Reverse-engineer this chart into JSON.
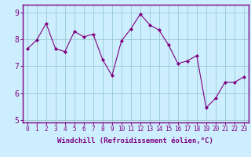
{
  "x": [
    0,
    1,
    2,
    3,
    4,
    5,
    6,
    7,
    8,
    9,
    10,
    11,
    12,
    13,
    14,
    15,
    16,
    17,
    18,
    19,
    20,
    21,
    22,
    23
  ],
  "y": [
    7.65,
    7.98,
    8.6,
    7.65,
    7.55,
    8.3,
    8.1,
    8.2,
    7.25,
    6.65,
    7.95,
    8.4,
    8.95,
    8.55,
    8.35,
    7.8,
    7.1,
    7.2,
    7.4,
    5.45,
    5.8,
    6.4,
    6.4,
    6.6
  ],
  "line_color": "#800080",
  "marker": "D",
  "marker_size": 2,
  "bg_color": "#cceeff",
  "grid_color": "#99cccc",
  "xlabel": "Windchill (Refroidissement éolien,°C)",
  "xlim": [
    -0.5,
    23.5
  ],
  "ylim": [
    4.9,
    9.3
  ],
  "yticks": [
    5,
    6,
    7,
    8,
    9
  ],
  "xticks": [
    0,
    1,
    2,
    3,
    4,
    5,
    6,
    7,
    8,
    9,
    10,
    11,
    12,
    13,
    14,
    15,
    16,
    17,
    18,
    19,
    20,
    21,
    22,
    23
  ],
  "spine_color": "#800080",
  "tick_fontsize": 5.5,
  "ytick_fontsize": 7,
  "xlabel_fontsize": 6.5
}
